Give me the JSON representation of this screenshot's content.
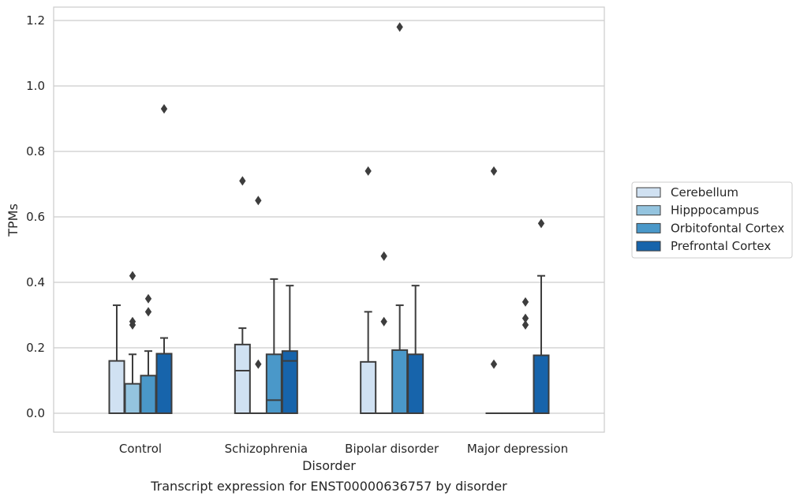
{
  "chart_data": {
    "type": "boxplot",
    "caption": "Transcript expression for ENST00000636757 by disorder",
    "xlabel": "Disorder",
    "ylabel": "TPMs",
    "ylim": [
      -0.056,
      1.24
    ],
    "yticks": [
      "0.0",
      "0.2",
      "0.4",
      "0.6",
      "0.8",
      "1.0",
      "1.2"
    ],
    "grid": true,
    "legend_position": "right",
    "categories": [
      "Control",
      "Schizophrenia",
      "Bipolar disorder",
      "Major depression"
    ],
    "series": [
      {
        "name": "Cerebellum",
        "color": "#d0e1f2",
        "boxes": [
          {
            "q1": 0.0,
            "median": 0.0,
            "q3": 0.16,
            "whisker_low": 0.0,
            "whisker_high": 0.33,
            "outliers": []
          },
          {
            "q1": 0.0,
            "median": 0.13,
            "q3": 0.21,
            "whisker_low": 0.0,
            "whisker_high": 0.26,
            "outliers": [
              0.71
            ]
          },
          {
            "q1": 0.0,
            "median": 0.0,
            "q3": 0.157,
            "whisker_low": 0.0,
            "whisker_high": 0.31,
            "outliers": [
              0.74
            ]
          },
          {
            "q1": 0.0,
            "median": 0.0,
            "q3": 0.0,
            "whisker_low": 0.0,
            "whisker_high": 0.0,
            "outliers": [
              0.15,
              0.74
            ]
          }
        ]
      },
      {
        "name": "Hipppocampus",
        "color": "#94c4df",
        "boxes": [
          {
            "q1": 0.0,
            "median": 0.0,
            "q3": 0.09,
            "whisker_low": 0.0,
            "whisker_high": 0.18,
            "outliers": [
              0.27,
              0.28,
              0.42
            ]
          },
          {
            "q1": 0.0,
            "median": 0.0,
            "q3": 0.0,
            "whisker_low": 0.0,
            "whisker_high": 0.0,
            "outliers": [
              0.15,
              0.65
            ]
          },
          {
            "q1": 0.0,
            "median": 0.0,
            "q3": 0.0,
            "whisker_low": 0.0,
            "whisker_high": 0.0,
            "outliers": [
              0.28,
              0.48
            ]
          },
          {
            "q1": 0.0,
            "median": 0.0,
            "q3": 0.0,
            "whisker_low": 0.0,
            "whisker_high": 0.0,
            "outliers": []
          }
        ]
      },
      {
        "name": "Orbitofontal Cortex",
        "color": "#4a98c9",
        "boxes": [
          {
            "q1": 0.0,
            "median": 0.0,
            "q3": 0.115,
            "whisker_low": 0.0,
            "whisker_high": 0.19,
            "outliers": [
              0.31,
              0.35
            ]
          },
          {
            "q1": 0.0,
            "median": 0.04,
            "q3": 0.18,
            "whisker_low": 0.0,
            "whisker_high": 0.41,
            "outliers": []
          },
          {
            "q1": 0.0,
            "median": 0.0,
            "q3": 0.193,
            "whisker_low": 0.0,
            "whisker_high": 0.33,
            "outliers": [
              1.18
            ]
          },
          {
            "q1": 0.0,
            "median": 0.0,
            "q3": 0.0,
            "whisker_low": 0.0,
            "whisker_high": 0.0,
            "outliers": [
              0.27,
              0.29,
              0.34
            ]
          }
        ]
      },
      {
        "name": "Prefrontal Cortex",
        "color": "#1764ab",
        "boxes": [
          {
            "q1": 0.0,
            "median": 0.0,
            "q3": 0.182,
            "whisker_low": 0.0,
            "whisker_high": 0.23,
            "outliers": [
              0.93
            ]
          },
          {
            "q1": 0.0,
            "median": 0.16,
            "q3": 0.19,
            "whisker_low": 0.0,
            "whisker_high": 0.39,
            "outliers": []
          },
          {
            "q1": 0.0,
            "median": 0.0,
            "q3": 0.18,
            "whisker_low": 0.0,
            "whisker_high": 0.39,
            "outliers": []
          },
          {
            "q1": 0.0,
            "median": 0.0,
            "q3": 0.177,
            "whisker_low": 0.0,
            "whisker_high": 0.42,
            "outliers": [
              0.58
            ]
          }
        ]
      }
    ]
  }
}
